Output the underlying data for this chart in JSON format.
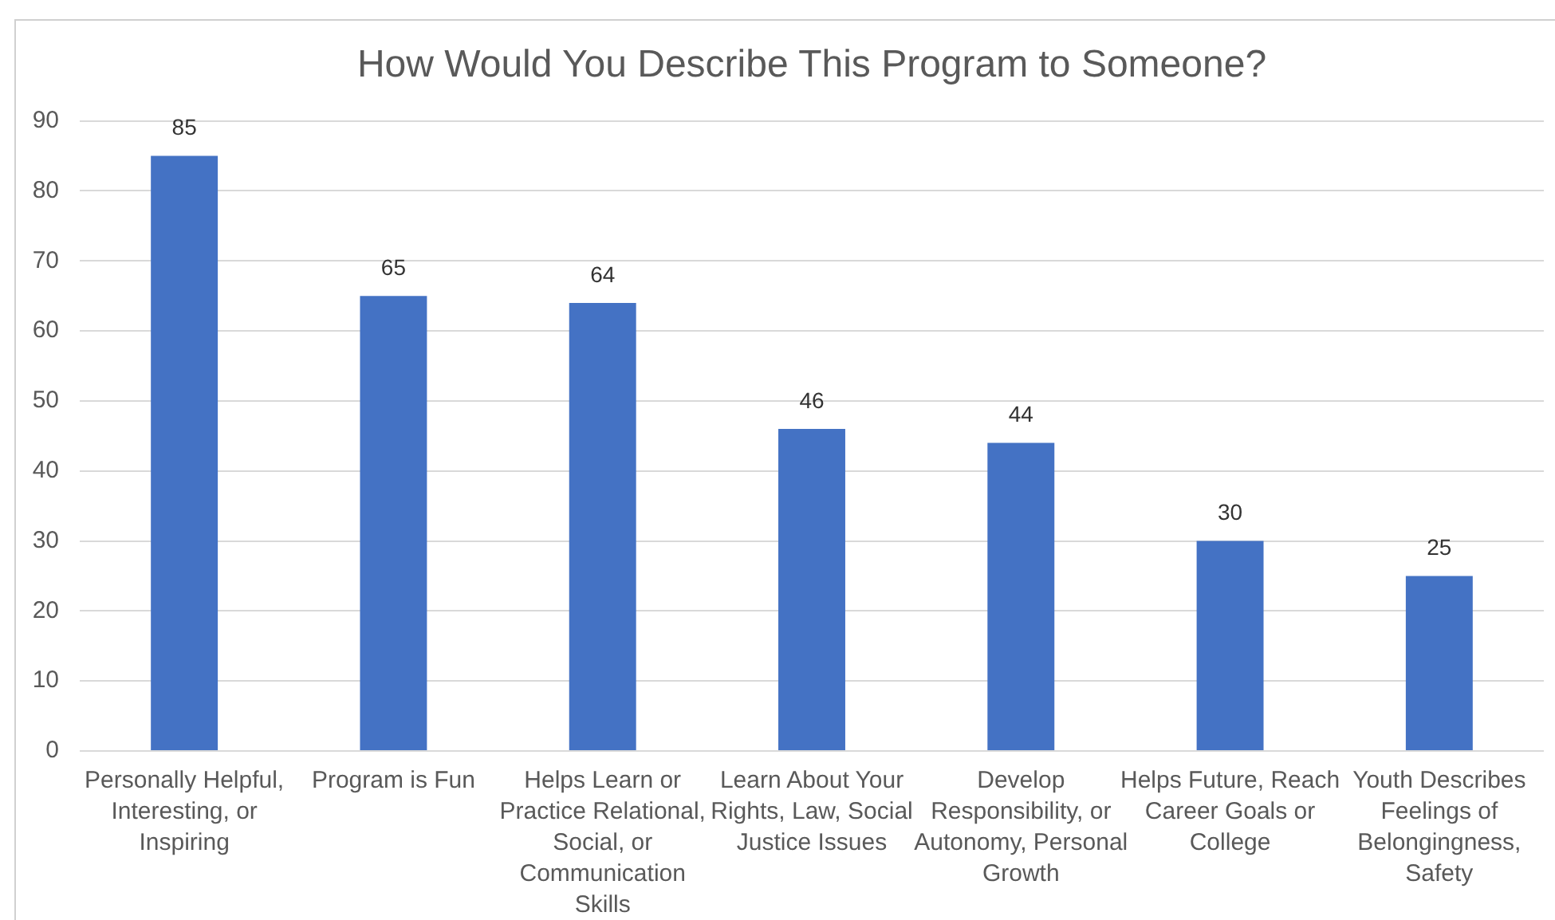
{
  "chart_data": {
    "type": "bar",
    "title": "How Would You Describe This Program to Someone?",
    "categories": [
      "Personally Helpful, Interesting, or Inspiring",
      "Program is Fun",
      "Helps Learn or Practice Relational, Social, or Communication Skills",
      "Learn About Your Rights, Law, Social Justice Issues",
      "Develop Responsibility, or Autonomy, Personal Growth",
      "Helps Future, Reach Career Goals or College",
      "Youth Describes Feelings of Belongingness, Safety"
    ],
    "values": [
      85,
      65,
      64,
      46,
      44,
      30,
      25
    ],
    "color": "#4472c4",
    "ylim": [
      0,
      90
    ],
    "yticks": [
      0,
      10,
      20,
      30,
      40,
      50,
      60,
      70,
      80,
      90
    ],
    "grid": "y",
    "data_labels": true
  }
}
